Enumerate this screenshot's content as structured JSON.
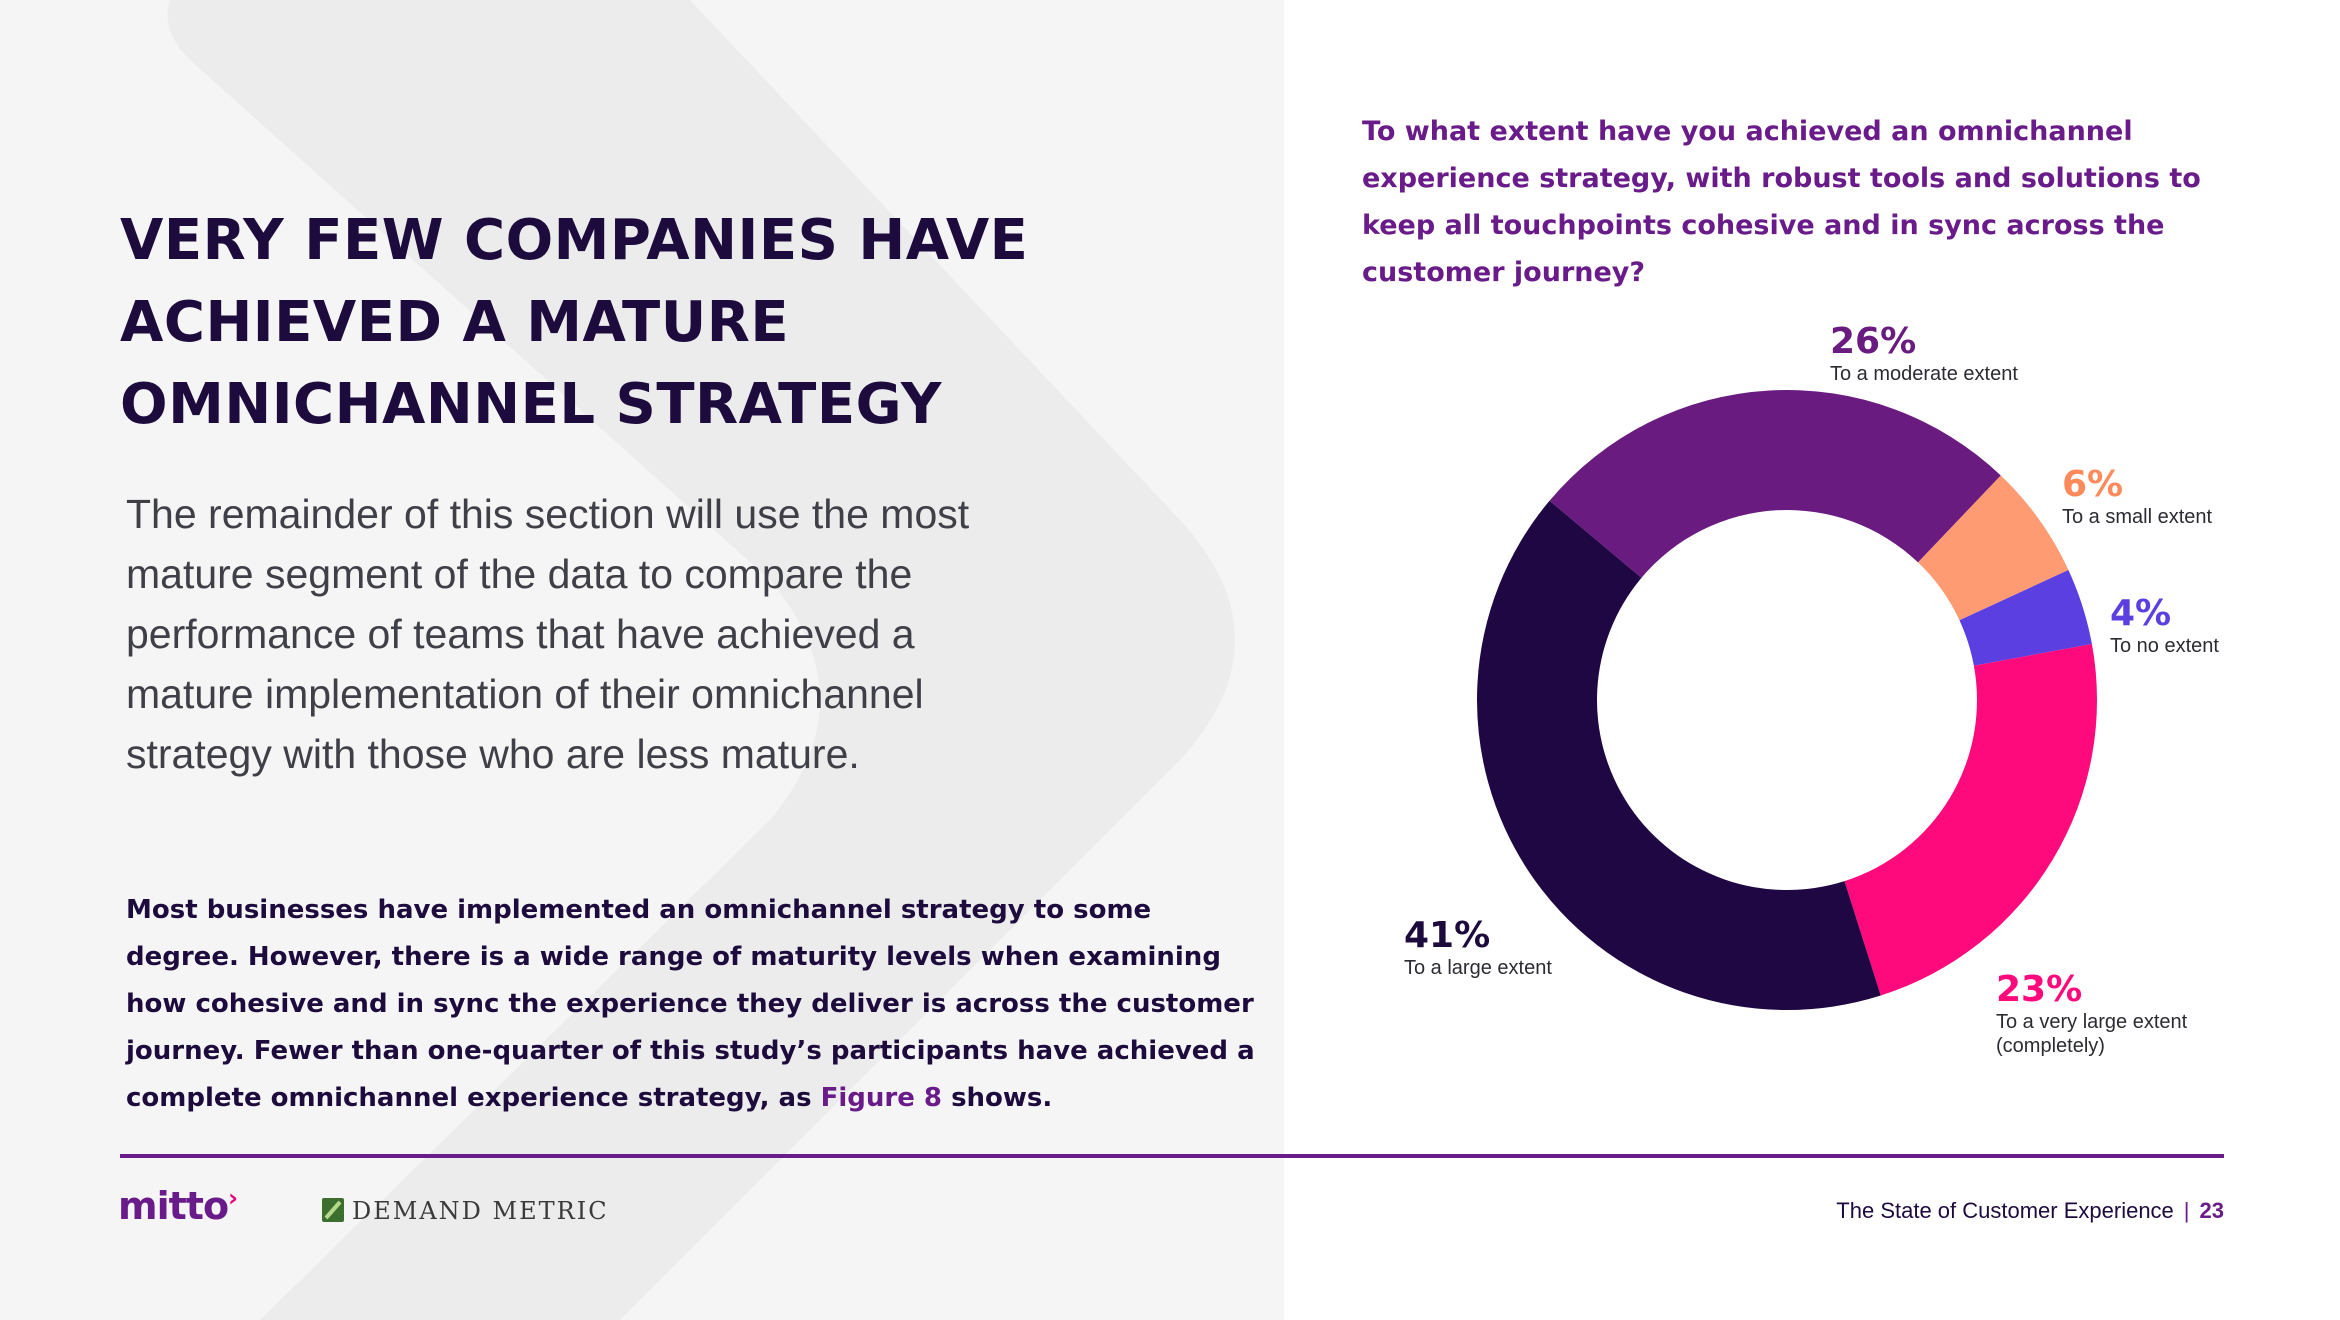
{
  "headline": "VERY FEW COMPANIES HAVE ACHIEVED A MATURE OMNICHANNEL STRATEGY",
  "intro": "The remainder of this section will use the most mature segment of the data to compare the performance of teams that have achieved a mature implementation of their omnichannel strategy with those who are less mature.",
  "body": {
    "text_before": "Most businesses have implemented an omnichannel strategy to some degree. However, there is a wide range of maturity levels when examining how cohesive and in sync the experience they deliver is across the customer journey. Fewer than one-quarter of this study’s participants have achieved a complete omnichannel experience strategy, as ",
    "figure_ref": "Figure 8",
    "text_after": " shows."
  },
  "question": "To what extent have you achieved an omnichannel experience strategy, with robust tools and solutions to keep all touchpoints cohesive and in sync across the customer journey?",
  "chart_data": {
    "type": "pie",
    "donut": true,
    "title": "To what extent have you achieved an omnichannel experience strategy, with robust tools and solutions to keep all touchpoints cohesive and in sync across the customer journey?",
    "categories": [
      "To a moderate extent",
      "To a small extent",
      "To no extent",
      "To a very large extent (completely)",
      "To a large extent"
    ],
    "values": [
      26,
      6,
      4,
      23,
      41
    ],
    "value_labels": [
      "26%",
      "6%",
      "4%",
      "23%",
      "41%"
    ],
    "colors": [
      "#6a1b80",
      "#ff9b73",
      "#5b3fe0",
      "#ff0a7c",
      "#1e0742"
    ],
    "label_colors": [
      "#6a1b80",
      "#ff8a5c",
      "#5b3fe0",
      "#ff0a7c",
      "#1e0b3e"
    ]
  },
  "footer": {
    "mitto_logo": "mitto",
    "demand_metric_logo": "DEMAND METRIC",
    "report_title": "The State of Customer Experience",
    "separator": "|",
    "page_number": "23"
  }
}
